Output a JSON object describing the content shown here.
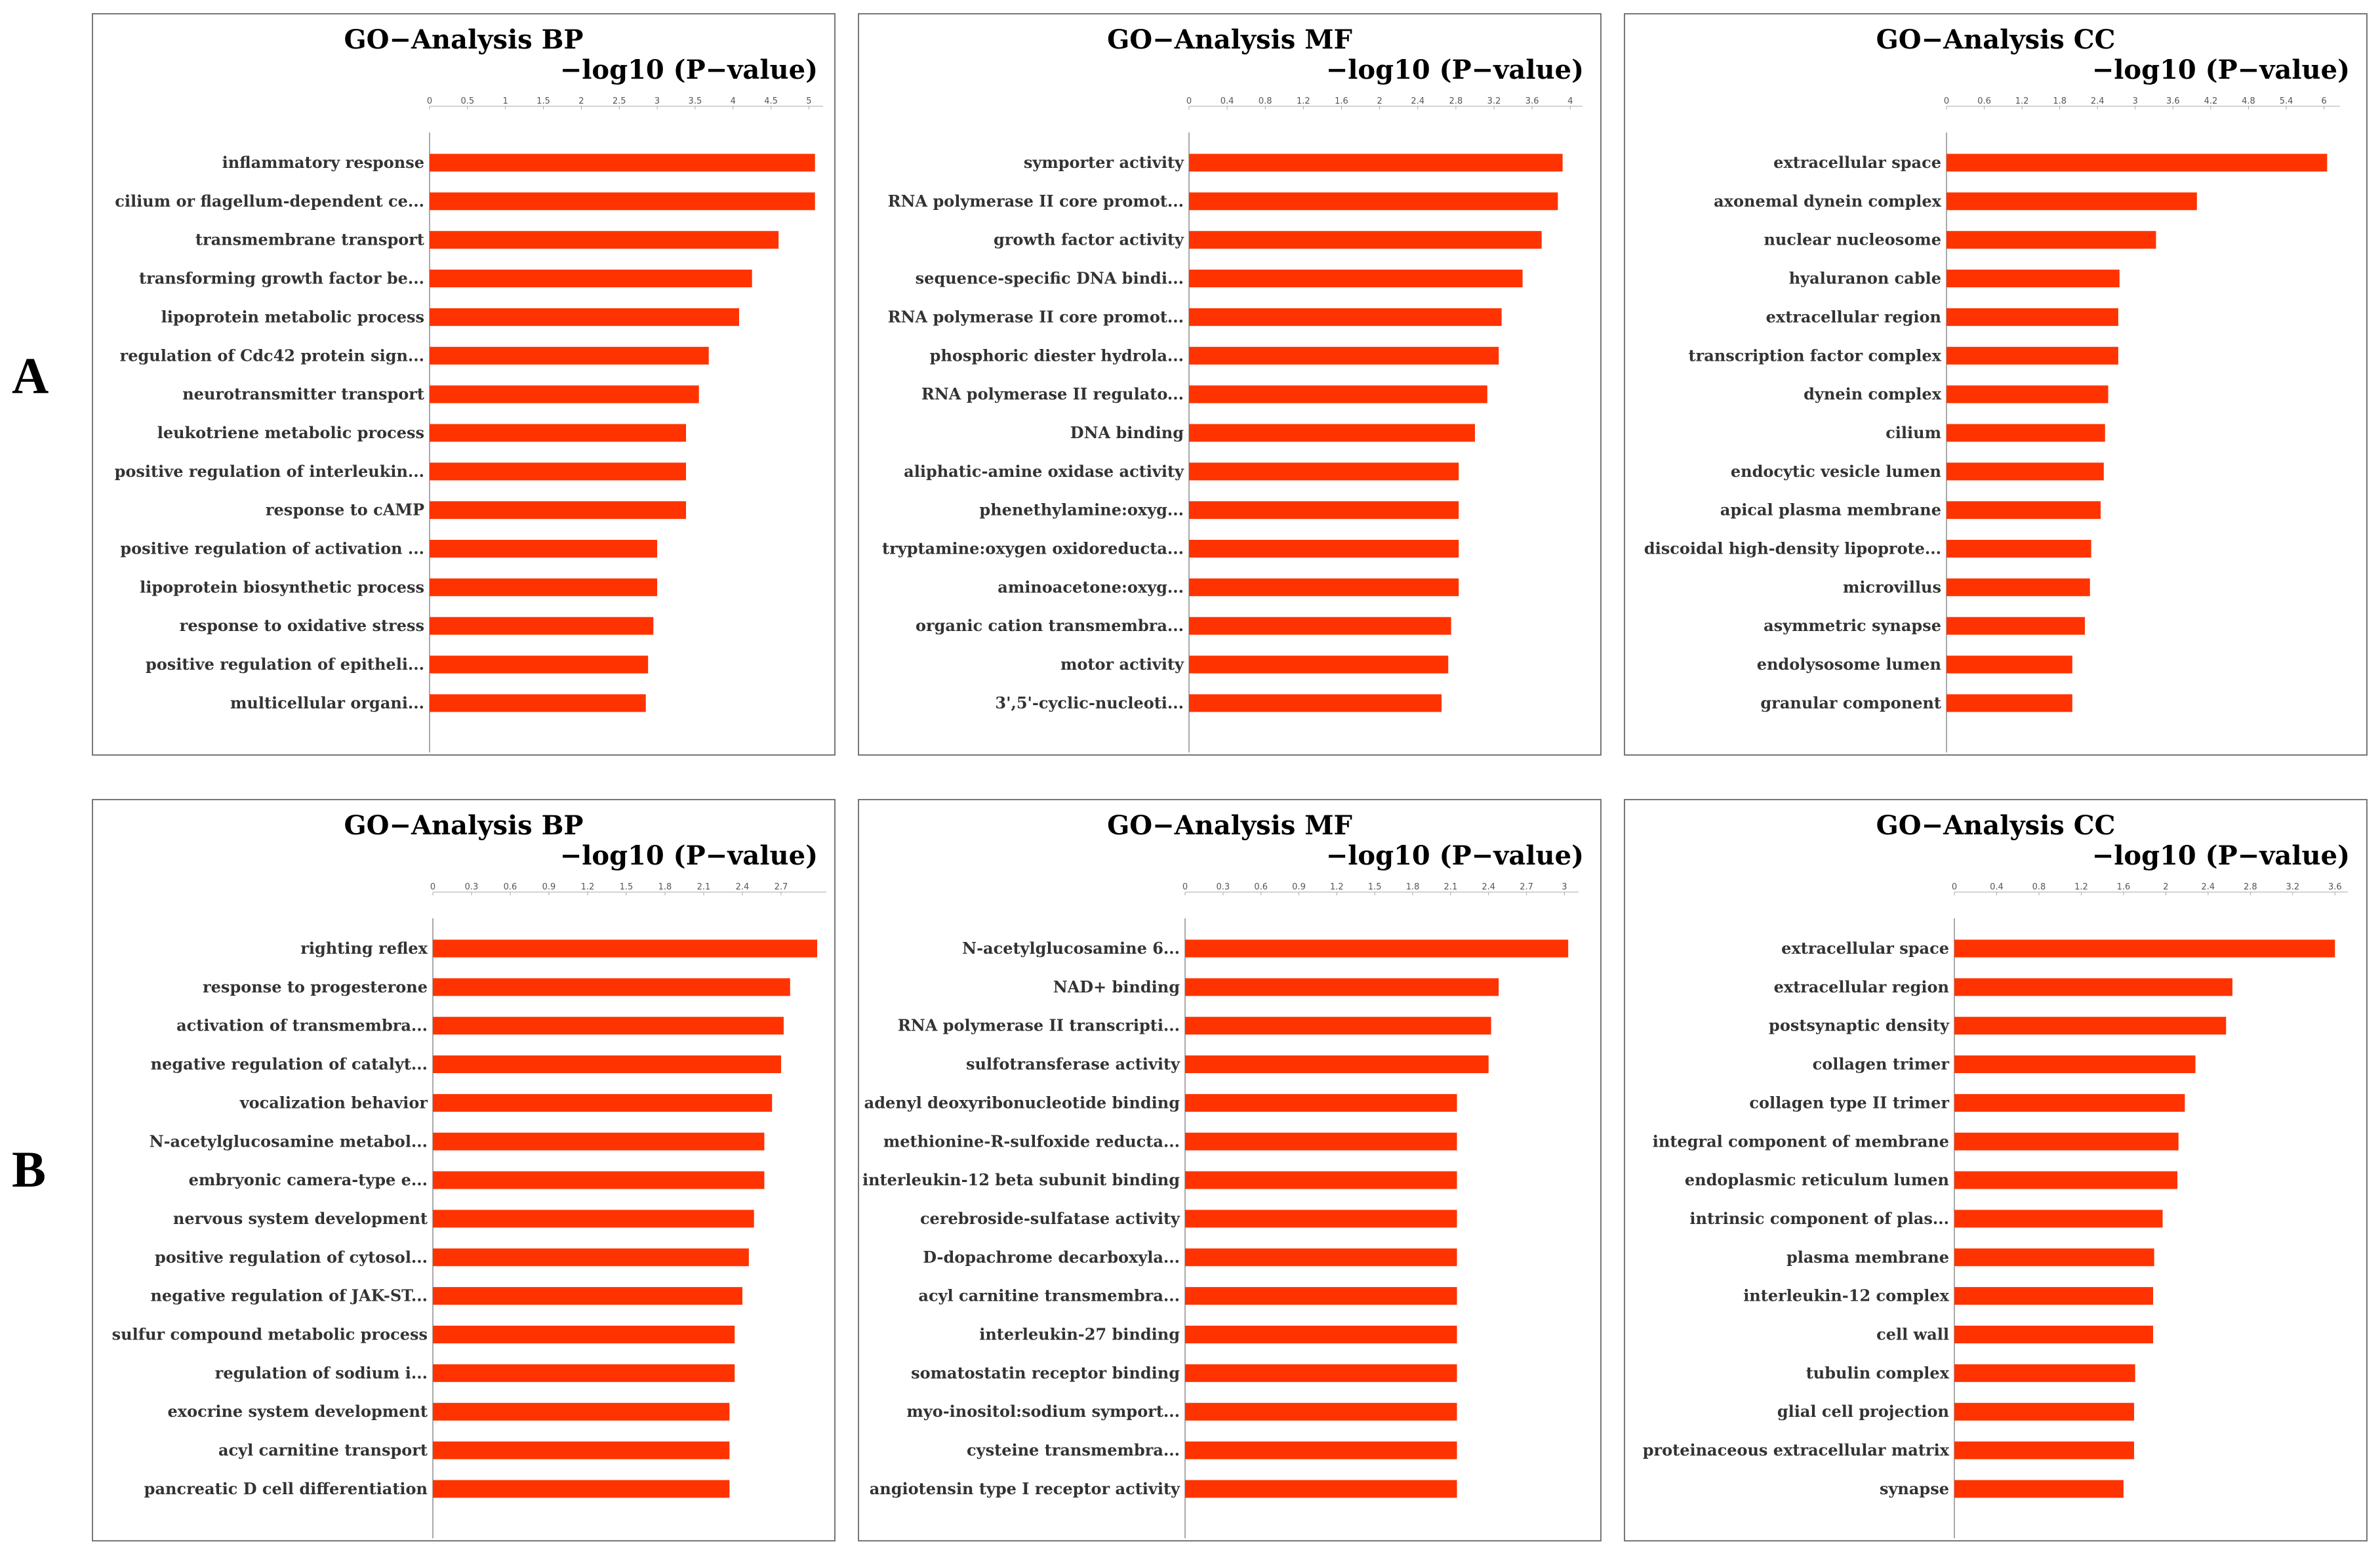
{
  "rows": [
    {
      "letter": "A"
    },
    {
      "letter": "B"
    }
  ],
  "chart_data": [
    {
      "type": "bar",
      "orientation": "horizontal",
      "title": "GO−Analysis BP",
      "xlabel": "−log10 (P−value)",
      "ticks": [
        0,
        0.5,
        1,
        1.5,
        2,
        2.5,
        3,
        3.5,
        4,
        4.5,
        5
      ],
      "xlim": [
        0,
        5.1
      ],
      "categories": [
        "inflammatory response",
        "cilium or flagellum-dependent ce...",
        "transmembrane transport",
        "transforming growth factor be...",
        "lipoprotein metabolic process",
        "regulation of Cdc42 protein sign...",
        "neurotransmitter transport",
        "leukotriene metabolic process",
        "positive regulation of interleukin...",
        "response to cAMP",
        "positive regulation of activation ...",
        "lipoprotein biosynthetic process",
        "response to oxidative stress",
        "positive regulation of epitheli...",
        "multicellular organi..."
      ],
      "values": [
        5.08,
        5.08,
        4.6,
        4.25,
        4.08,
        3.68,
        3.55,
        3.38,
        3.38,
        3.38,
        3.0,
        3.0,
        2.95,
        2.88,
        2.85
      ],
      "bar_color": "#ff3300"
    },
    {
      "type": "bar",
      "orientation": "horizontal",
      "title": "GO−Analysis MF",
      "xlabel": "−log10 (P−value)",
      "ticks": [
        0,
        0.4,
        0.8,
        1.2,
        1.6,
        2,
        2.4,
        2.8,
        3.2,
        3.6,
        4
      ],
      "xlim": [
        0,
        4.06
      ],
      "categories": [
        "symporter activity",
        "RNA polymerase II core promot...",
        "growth factor activity",
        "sequence-specific DNA bindi...",
        "RNA polymerase II core promot...",
        "phosphoric diester hydrola...",
        "RNA polymerase II regulato...",
        "DNA binding",
        "aliphatic-amine oxidase activity",
        "phenethylamine:oxyg...",
        "tryptamine:oxygen oxidoreducta...",
        "aminoacetone:oxyg...",
        "organic cation transmembra...",
        "motor activity",
        "3',5'-cyclic-nucleoti..."
      ],
      "values": [
        3.92,
        3.87,
        3.7,
        3.5,
        3.28,
        3.25,
        3.13,
        3.0,
        2.83,
        2.83,
        2.83,
        2.83,
        2.75,
        2.72,
        2.65
      ],
      "bar_color": "#ff3300"
    },
    {
      "type": "bar",
      "orientation": "horizontal",
      "title": "GO−Analysis CC",
      "xlabel": "−log10 (P−value)",
      "ticks": [
        0,
        0.6,
        1.2,
        1.8,
        2.4,
        3,
        3.6,
        4.2,
        4.8,
        5.4,
        6
      ],
      "xlim": [
        0,
        6.15
      ],
      "categories": [
        "extracellular space",
        "axonemal dynein complex",
        "nuclear nucleosome",
        "hyaluranon cable",
        "extracellular region",
        "transcription factor complex",
        "dynein complex",
        "cilium",
        "endocytic vesicle lumen",
        "apical plasma membrane",
        "discoidal high-density lipoprote...",
        "microvillus",
        "asymmetric synapse",
        "endolysosome lumen",
        "granular component"
      ],
      "values": [
        6.05,
        3.98,
        3.33,
        2.75,
        2.73,
        2.73,
        2.57,
        2.52,
        2.5,
        2.45,
        2.3,
        2.28,
        2.2,
        2.0,
        2.0
      ],
      "bar_color": "#ff3300"
    },
    {
      "type": "bar",
      "orientation": "horizontal",
      "title": "GO−Analysis BP",
      "xlabel": "−log10 (P−value)",
      "ticks": [
        0,
        0.3,
        0.6,
        0.9,
        1.2,
        1.5,
        1.8,
        2.1,
        2.4,
        2.7
      ],
      "xlim": [
        0,
        3.0
      ],
      "categories": [
        "righting reflex",
        "response to progesterone",
        "activation of transmembra...",
        "negative regulation of catalyt...",
        "vocalization behavior",
        "N-acetylglucosamine metabol...",
        "embryonic camera-type e...",
        "nervous system development",
        "positive regulation of cytosol...",
        "negative regulation of JAK-ST...",
        "sulfur compound metabolic process",
        "regulation of sodium i...",
        "exocrine system development",
        "acyl carnitine transport",
        "pancreatic D cell differentiation"
      ],
      "values": [
        2.98,
        2.77,
        2.72,
        2.7,
        2.63,
        2.57,
        2.57,
        2.49,
        2.45,
        2.4,
        2.34,
        2.34,
        2.3,
        2.3,
        2.3
      ],
      "bar_color": "#ff3300"
    },
    {
      "type": "bar",
      "orientation": "horizontal",
      "title": "GO−Analysis MF",
      "xlabel": "−log10 (P−value)",
      "ticks": [
        0,
        0.3,
        0.6,
        0.9,
        1.2,
        1.5,
        1.8,
        2.1,
        2.4,
        2.7,
        3
      ],
      "xlim": [
        0,
        3.06
      ],
      "categories": [
        "N-acetylglucosamine 6...",
        "NAD+ binding",
        "RNA polymerase II transcripti...",
        "sulfotransferase activity",
        "adenyl deoxyribonucleotide binding",
        "methionine-R-sulfoxide reducta...",
        "interleukin-12 beta subunit binding",
        "cerebroside-sulfatase activity",
        "D-dopachrome decarboxyla...",
        "acyl carnitine transmembra...",
        "interleukin-27 binding",
        "somatostatin receptor binding",
        "myo-inositol:sodium symport...",
        "cysteine transmembra...",
        "angiotensin type I receptor activity"
      ],
      "values": [
        3.03,
        2.48,
        2.42,
        2.4,
        2.15,
        2.15,
        2.15,
        2.15,
        2.15,
        2.15,
        2.15,
        2.15,
        2.15,
        2.15,
        2.15
      ],
      "bar_color": "#ff3300"
    },
    {
      "type": "bar",
      "orientation": "horizontal",
      "title": "GO−Analysis CC",
      "xlabel": "−log10 (P−value)",
      "ticks": [
        0,
        0.4,
        0.8,
        1.2,
        1.6,
        2,
        2.4,
        2.8,
        3.2,
        3.6
      ],
      "xlim": [
        0,
        3.66
      ],
      "categories": [
        "extracellular space",
        "extracellular region",
        "postsynaptic density",
        "collagen trimer",
        "collagen type II trimer",
        "integral component of membrane",
        "endoplasmic reticulum lumen",
        "intrinsic component of plas...",
        "plasma membrane",
        "interleukin-12 complex",
        "cell wall",
        "tubulin complex",
        "glial cell projection",
        "proteinaceous extracellular matrix",
        "synapse"
      ],
      "values": [
        3.6,
        2.63,
        2.57,
        2.28,
        2.18,
        2.12,
        2.11,
        1.97,
        1.89,
        1.88,
        1.88,
        1.71,
        1.7,
        1.7,
        1.6
      ],
      "bar_color": "#ff3300"
    }
  ]
}
